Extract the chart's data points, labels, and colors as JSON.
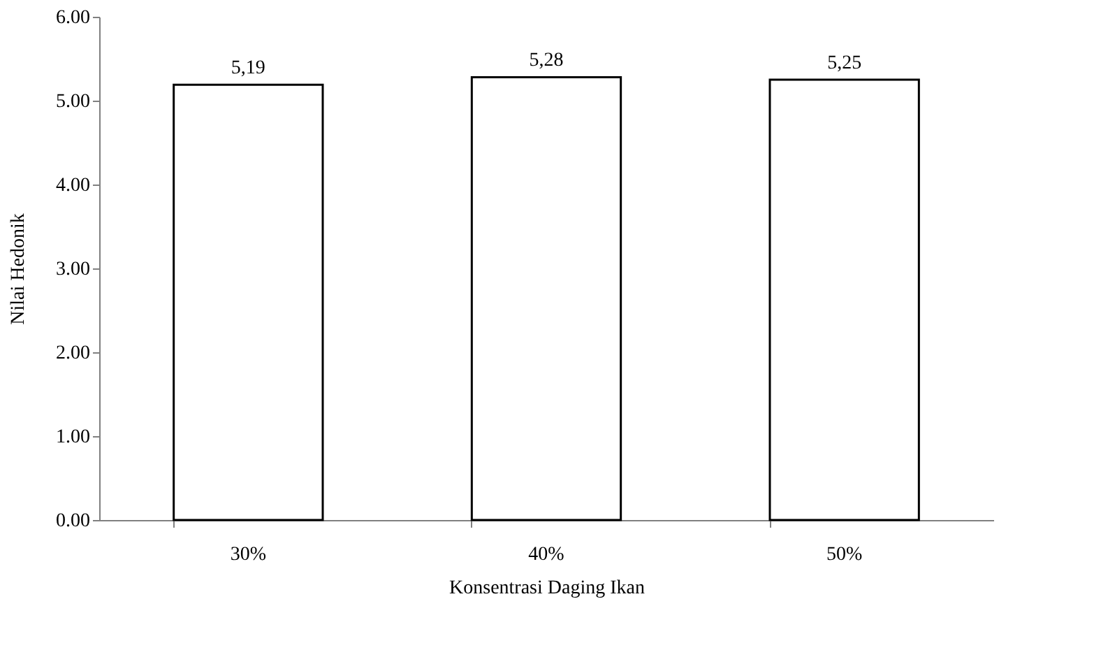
{
  "chart_data": {
    "type": "bar",
    "xlabel": "Konsentrasi Daging Ikan",
    "ylabel": "Nilai Hedonik",
    "categories": [
      "30%",
      "40%",
      "50%"
    ],
    "values": [
      5.19,
      5.28,
      5.25
    ],
    "value_labels": [
      "5,19",
      "5,28",
      "5,25"
    ],
    "color": "#ffffff",
    "ylim": [
      0,
      6
    ],
    "yticks": [
      {
        "value": 0,
        "label": "0.00"
      },
      {
        "value": 1,
        "label": "1.00"
      },
      {
        "value": 2,
        "label": "2.00"
      },
      {
        "value": 3,
        "label": "3.00"
      },
      {
        "value": 4,
        "label": "4.00"
      },
      {
        "value": 5,
        "label": "5.00"
      },
      {
        "value": 6,
        "label": "6.00"
      }
    ],
    "grid": false
  }
}
